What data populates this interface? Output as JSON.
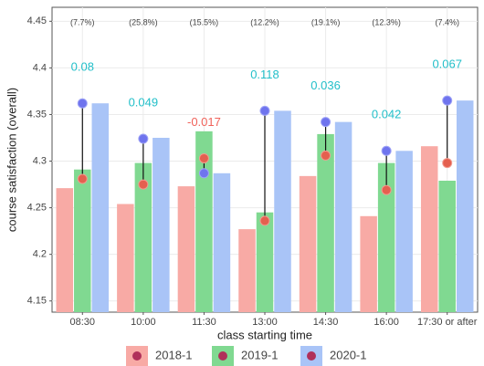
{
  "chart_data": {
    "type": "bar",
    "x_label": "class starting time",
    "y_label": "course satisfaction (overall)",
    "categories": [
      "08:30",
      "10:00",
      "11:30",
      "13:00",
      "14:30",
      "16:00",
      "17:30 or after"
    ],
    "series": [
      {
        "name": "2018-1",
        "color": "#f8aaa5",
        "values": [
          4.271,
          4.254,
          4.273,
          4.227,
          4.284,
          4.241,
          4.316
        ]
      },
      {
        "name": "2019-1",
        "color": "#80d991",
        "values": [
          4.291,
          4.298,
          4.332,
          4.245,
          4.329,
          4.298,
          4.279
        ]
      },
      {
        "name": "2020-1",
        "color": "#a9c4f7",
        "values": [
          4.362,
          4.325,
          4.287,
          4.354,
          4.342,
          4.311,
          4.365
        ]
      }
    ],
    "start_dots": {
      "color": "#e4604f",
      "values": [
        4.281,
        4.275,
        4.303,
        4.236,
        4.306,
        4.269,
        4.298
      ]
    },
    "end_dots": {
      "color": "#6f74ee",
      "values": [
        4.362,
        4.324,
        4.287,
        4.354,
        4.342,
        4.311,
        4.365
      ]
    },
    "change_labels": [
      0.08,
      0.049,
      -0.017,
      0.118,
      0.036,
      0.042,
      0.067
    ],
    "positive_color": "#22bfc9",
    "negative_color": "#f0625a",
    "percent_labels": [
      "(7.7%)",
      "(25.8%)",
      "(15.5%)",
      "(12.2%)",
      "(19.1%)",
      "(12.3%)",
      "(7.4%)"
    ],
    "legend_dot_color": "#b0305a",
    "ylim": [
      4.138,
      4.465
    ],
    "yticks": [
      4.15,
      4.2,
      4.25,
      4.3,
      4.35,
      4.4,
      4.45
    ],
    "grid": true,
    "legend_position": "bottom"
  }
}
